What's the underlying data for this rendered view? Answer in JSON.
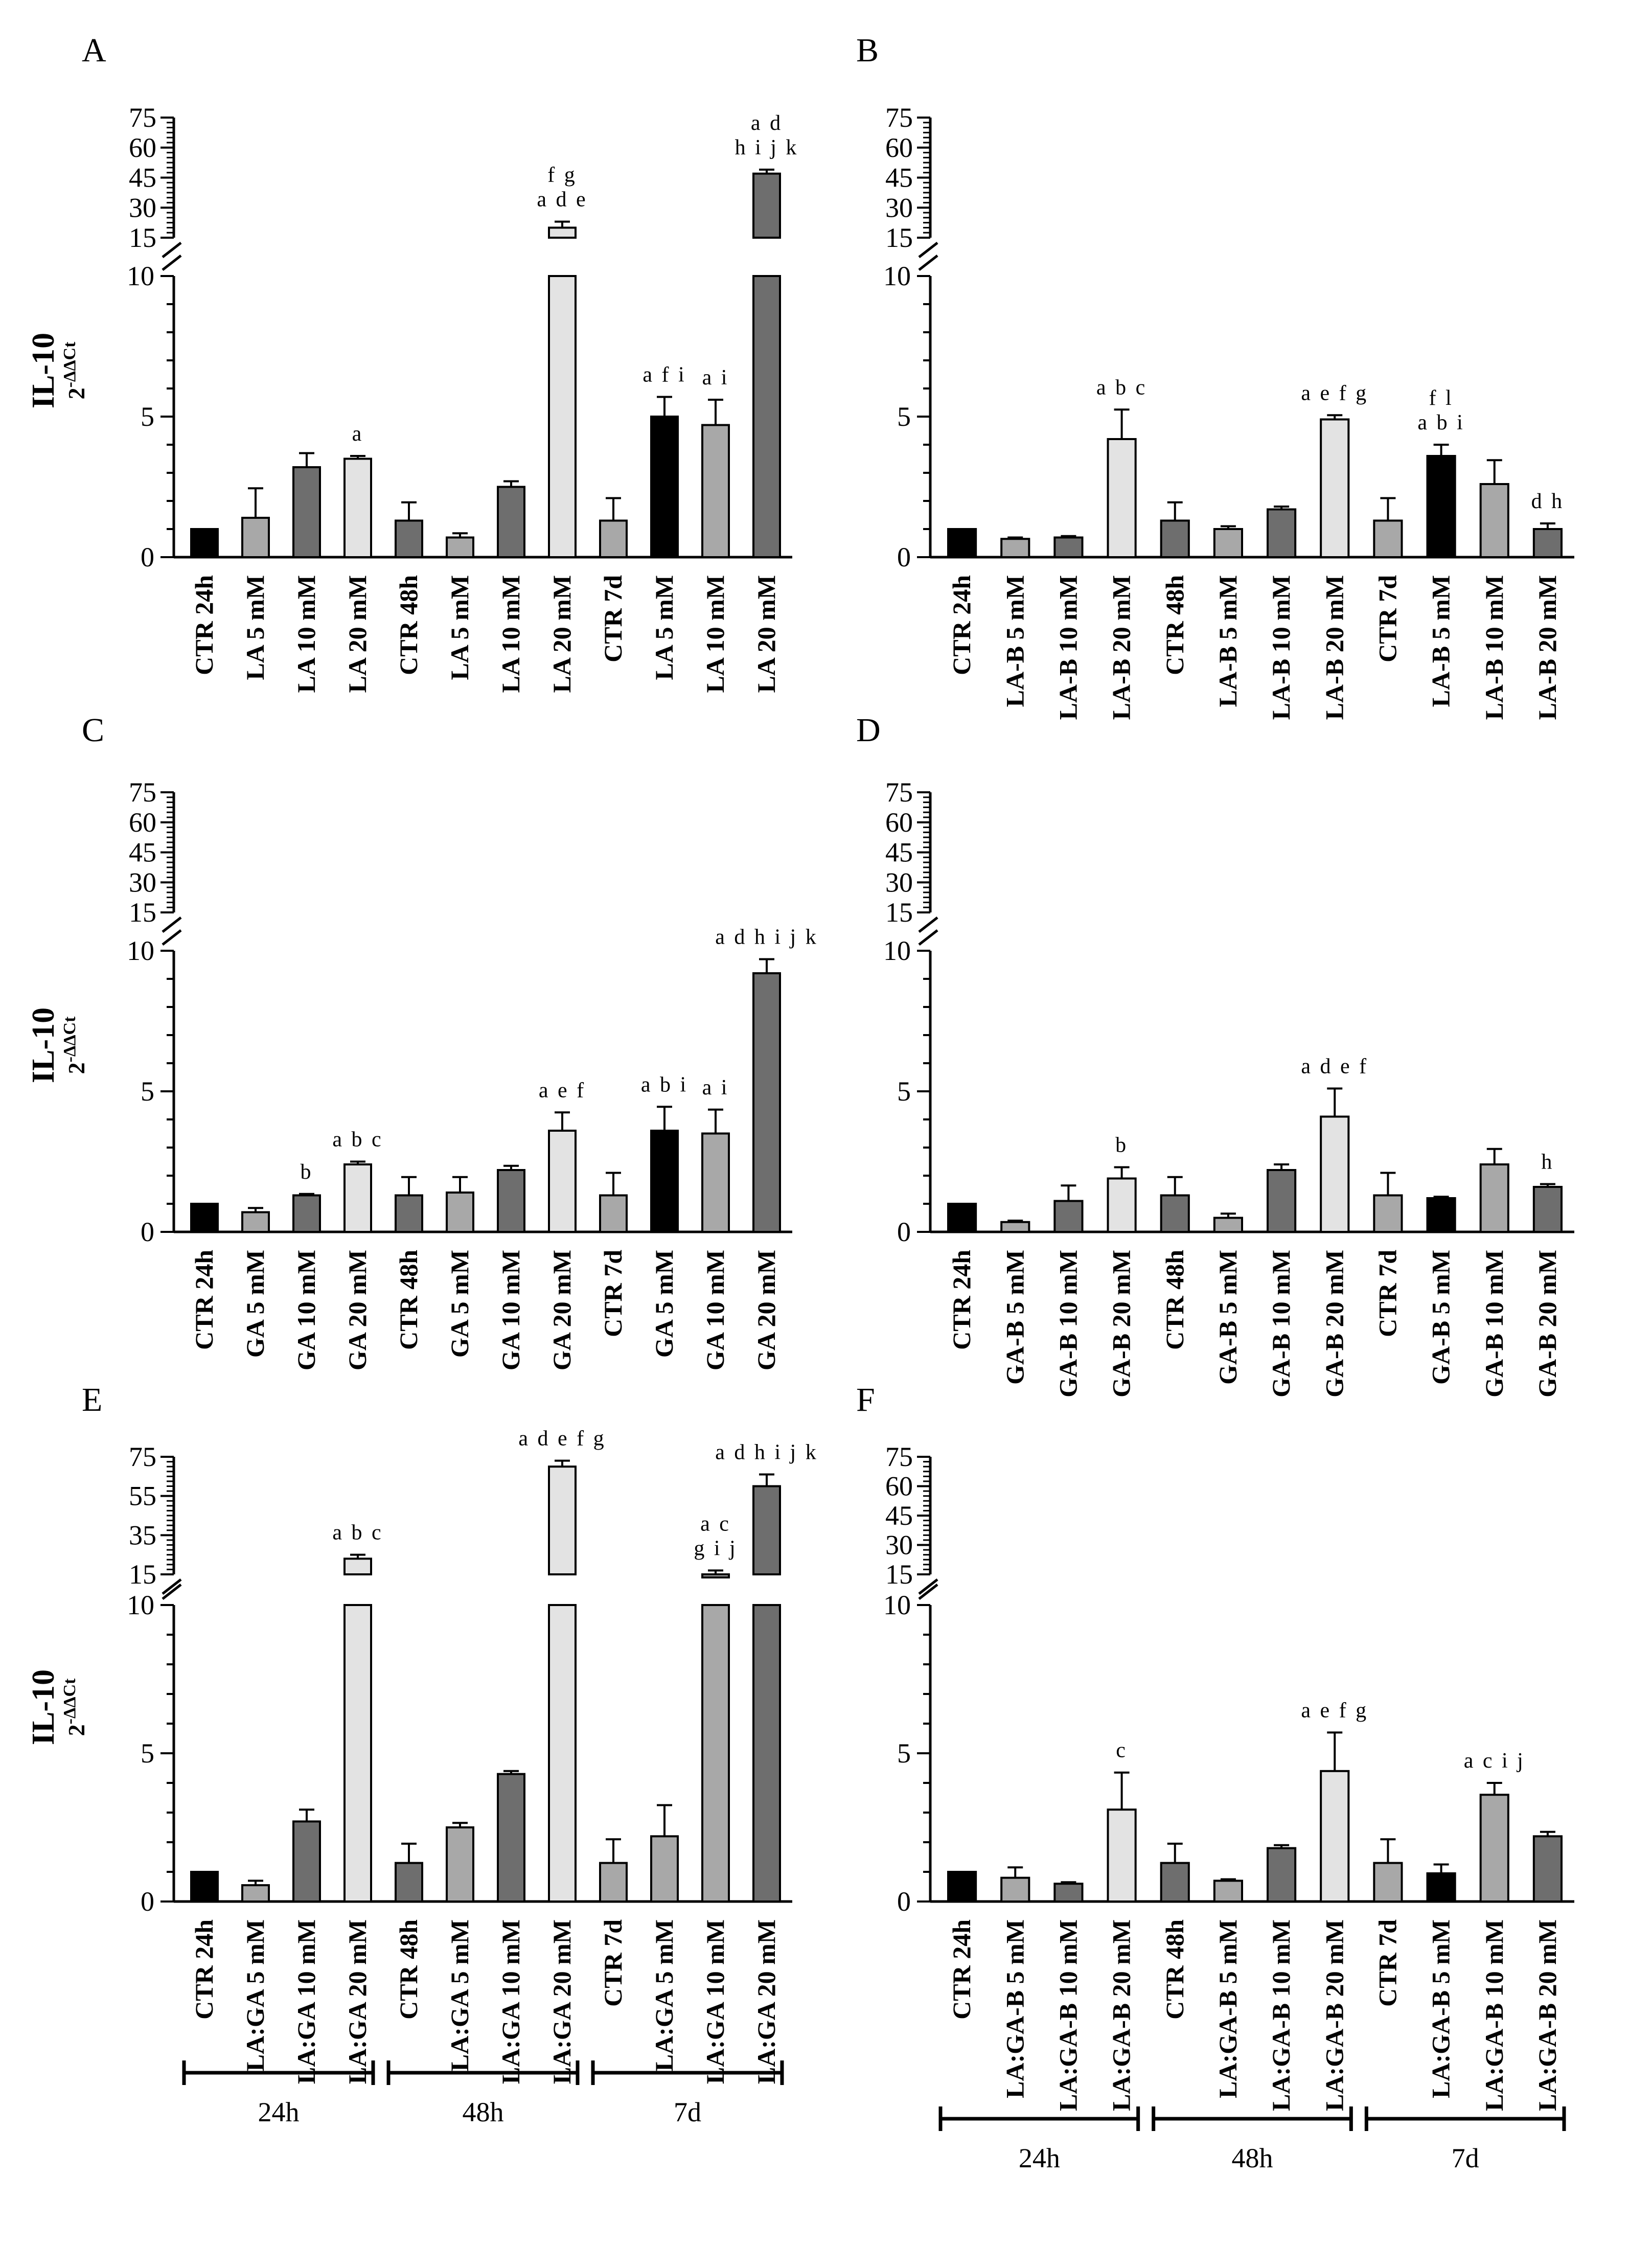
{
  "figure": {
    "y_label_main": "IL-10",
    "y_label_base": "2",
    "y_label_sup": "-ΔΔCt"
  },
  "chart_data": [
    {
      "type": "bar",
      "panel": "A",
      "categories": [
        "CTR 24h",
        "LA 5 mM",
        "LA 10 mM",
        "LA 20 mM",
        "CTR 48h",
        "LA 5 mM",
        "LA 10 mM",
        "LA 20 mM",
        "CTR 7d",
        "LA 5 mM",
        "LA 10 mM",
        "LA 20 mM"
      ],
      "values": [
        1.0,
        1.4,
        3.2,
        3.5,
        1.3,
        0.7,
        2.5,
        20,
        1.3,
        5.0,
        4.7,
        47
      ],
      "errors": [
        0,
        1.05,
        0.5,
        0.1,
        0.65,
        0.15,
        0.2,
        3,
        0.8,
        0.7,
        0.9,
        2
      ],
      "bar_colors": [
        "#000000",
        "#a8a8a8",
        "#6e6e6e",
        "#e3e3e3",
        "#6e6e6e",
        "#a8a8a8",
        "#6e6e6e",
        "#e3e3e3",
        "#a8a8a8",
        "#000000",
        "#a8a8a8",
        "#6e6e6e"
      ],
      "significance": [
        [],
        [],
        [],
        [
          "a"
        ],
        [],
        [],
        [],
        [
          "f g",
          "a d e"
        ],
        [],
        [
          "a f i"
        ],
        [
          "a i"
        ],
        [
          "a d",
          "h i j k"
        ]
      ],
      "y_label": "IL-10 2-ΔΔCt",
      "ylim_lower": [
        0,
        10
      ],
      "ylim_upper": [
        15,
        75
      ],
      "yticks_lower": [
        "0",
        "5",
        "10"
      ],
      "yticks_upper": [
        "15",
        "30",
        "45",
        "60",
        "75"
      ]
    },
    {
      "type": "bar",
      "panel": "B",
      "categories": [
        "CTR 24h",
        "LA-B 5 mM",
        "LA-B 10 mM",
        "LA-B 20 mM",
        "CTR 48h",
        "LA-B 5 mM",
        "LA-B 10 mM",
        "LA-B 20 mM",
        "CTR 7d",
        "LA-B 5 mM",
        "LA-B 10 mM",
        "LA-B 20 mM"
      ],
      "values": [
        1.0,
        0.65,
        0.7,
        4.2,
        1.3,
        1.0,
        1.7,
        4.9,
        1.3,
        3.6,
        2.6,
        1.0
      ],
      "errors": [
        0,
        0.05,
        0.05,
        1.05,
        0.65,
        0.1,
        0.1,
        0.15,
        0.8,
        0.4,
        0.85,
        0.2
      ],
      "bar_colors": [
        "#000000",
        "#a8a8a8",
        "#6e6e6e",
        "#e3e3e3",
        "#6e6e6e",
        "#a8a8a8",
        "#6e6e6e",
        "#e3e3e3",
        "#a8a8a8",
        "#000000",
        "#a8a8a8",
        "#6e6e6e"
      ],
      "significance": [
        [],
        [],
        [],
        [
          "a b c"
        ],
        [],
        [],
        [],
        [
          "a e f g"
        ],
        [],
        [
          "f l",
          "a b i"
        ],
        [],
        [
          "d h"
        ]
      ],
      "y_label": "",
      "ylim_lower": [
        0,
        10
      ],
      "ylim_upper": [
        15,
        75
      ],
      "yticks_lower": [
        "0",
        "5",
        "10"
      ],
      "yticks_upper": [
        "15",
        "30",
        "45",
        "60",
        "75"
      ]
    },
    {
      "type": "bar",
      "panel": "C",
      "categories": [
        "CTR 24h",
        "GA 5 mM",
        "GA 10 mM",
        "GA 20 mM",
        "CTR 48h",
        "GA 5 mM",
        "GA 10 mM",
        "GA 20 mM",
        "CTR 7d",
        "GA 5 mM",
        "GA 10 mM",
        "GA 20 mM"
      ],
      "values": [
        1.0,
        0.7,
        1.3,
        2.4,
        1.3,
        1.4,
        2.2,
        3.6,
        1.3,
        3.6,
        3.5,
        9.2
      ],
      "errors": [
        0,
        0.15,
        0.05,
        0.1,
        0.65,
        0.55,
        0.15,
        0.65,
        0.8,
        0.85,
        0.85,
        0.5
      ],
      "bar_colors": [
        "#000000",
        "#a8a8a8",
        "#6e6e6e",
        "#e3e3e3",
        "#6e6e6e",
        "#a8a8a8",
        "#6e6e6e",
        "#e3e3e3",
        "#a8a8a8",
        "#000000",
        "#a8a8a8",
        "#6e6e6e"
      ],
      "significance": [
        [],
        [],
        [
          "b"
        ],
        [
          "a b c"
        ],
        [],
        [],
        [],
        [
          "a e f"
        ],
        [],
        [
          "a b i"
        ],
        [
          "a i"
        ],
        [
          "a d h i j k"
        ]
      ],
      "y_label": "IL-10 2-ΔΔCt",
      "ylim_lower": [
        0,
        10
      ],
      "ylim_upper": [
        15,
        75
      ],
      "yticks_lower": [
        "0",
        "5",
        "10"
      ],
      "yticks_upper": [
        "15",
        "30",
        "45",
        "60",
        "75"
      ]
    },
    {
      "type": "bar",
      "panel": "D",
      "categories": [
        "CTR 24h",
        "GA-B 5 mM",
        "GA-B 10 mM",
        "GA-B 20 mM",
        "CTR 48h",
        "GA-B 5 mM",
        "GA-B 10 mM",
        "GA-B 20 mM",
        "CTR 7d",
        "GA-B 5 mM",
        "GA-B 10 mM",
        "GA-B 20 mM"
      ],
      "values": [
        1.0,
        0.35,
        1.1,
        1.9,
        1.3,
        0.5,
        2.2,
        4.1,
        1.3,
        1.2,
        2.4,
        1.6
      ],
      "errors": [
        0,
        0.05,
        0.55,
        0.4,
        0.65,
        0.15,
        0.2,
        1.0,
        0.8,
        0.05,
        0.55,
        0.1
      ],
      "bar_colors": [
        "#000000",
        "#a8a8a8",
        "#6e6e6e",
        "#e3e3e3",
        "#6e6e6e",
        "#a8a8a8",
        "#6e6e6e",
        "#e3e3e3",
        "#a8a8a8",
        "#000000",
        "#a8a8a8",
        "#6e6e6e"
      ],
      "significance": [
        [],
        [],
        [],
        [
          "b"
        ],
        [],
        [],
        [],
        [
          "a d e f"
        ],
        [],
        [],
        [],
        [
          "h"
        ]
      ],
      "y_label": "",
      "ylim_lower": [
        0,
        10
      ],
      "ylim_upper": [
        15,
        75
      ],
      "yticks_lower": [
        "0",
        "5",
        "10"
      ],
      "yticks_upper": [
        "15",
        "30",
        "45",
        "60",
        "75"
      ]
    },
    {
      "type": "bar",
      "panel": "E",
      "categories": [
        "CTR 24h",
        "LA:GA 5 mM",
        "LA:GA 10 mM",
        "LA:GA 20 mM",
        "CTR 48h",
        "LA:GA 5 mM",
        "LA:GA 10 mM",
        "LA:GA 20 mM",
        "CTR 7d",
        "LA:GA 5 mM",
        "LA:GA 10 mM",
        "LA:GA 20 mM"
      ],
      "values": [
        1.0,
        0.55,
        2.7,
        23,
        1.3,
        2.5,
        4.3,
        70,
        1.3,
        2.2,
        15,
        60
      ],
      "errors": [
        0,
        0.15,
        0.4,
        2,
        0.65,
        0.15,
        0.1,
        3,
        0.8,
        1.05,
        2,
        6
      ],
      "bar_colors": [
        "#000000",
        "#a8a8a8",
        "#6e6e6e",
        "#e3e3e3",
        "#6e6e6e",
        "#a8a8a8",
        "#6e6e6e",
        "#e3e3e3",
        "#a8a8a8",
        "#a8a8a8",
        "#a8a8a8",
        "#6e6e6e"
      ],
      "significance": [
        [],
        [],
        [],
        [
          "a b c"
        ],
        [],
        [],
        [],
        [
          "a d e f g"
        ],
        [],
        [],
        [
          "a c",
          "g i j"
        ],
        [
          "a d h i j k"
        ]
      ],
      "y_label": "IL-10 2-ΔΔCt",
      "ylim_lower": [
        0,
        10
      ],
      "ylim_upper": [
        15,
        75
      ],
      "yticks_lower": [
        "0",
        "5",
        "10"
      ],
      "yticks_upper": [
        "15",
        "35",
        "55",
        "75"
      ],
      "groups": [
        "24h",
        "48h",
        "7d"
      ]
    },
    {
      "type": "bar",
      "panel": "F",
      "categories": [
        "CTR 24h",
        "LA:GA-B 5 mM",
        "LA:GA-B 10 mM",
        "LA:GA-B 20 mM",
        "CTR 48h",
        "LA:GA-B 5 mM",
        "LA:GA-B 10 mM",
        "LA:GA-B 20 mM",
        "CTR 7d",
        "LA:GA-B 5 mM",
        "LA:GA-B 10 mM",
        "LA:GA-B 20 mM"
      ],
      "values": [
        1.0,
        0.8,
        0.6,
        3.1,
        1.3,
        0.7,
        1.8,
        4.4,
        1.3,
        0.95,
        3.6,
        2.2
      ],
      "errors": [
        0,
        0.35,
        0.05,
        1.25,
        0.65,
        0.05,
        0.1,
        1.3,
        0.8,
        0.3,
        0.4,
        0.15
      ],
      "bar_colors": [
        "#000000",
        "#a8a8a8",
        "#6e6e6e",
        "#e3e3e3",
        "#6e6e6e",
        "#a8a8a8",
        "#6e6e6e",
        "#e3e3e3",
        "#a8a8a8",
        "#000000",
        "#a8a8a8",
        "#6e6e6e"
      ],
      "significance": [
        [],
        [],
        [],
        [
          "c"
        ],
        [],
        [],
        [],
        [
          "a e f g"
        ],
        [],
        [],
        [
          "a c i j"
        ],
        []
      ],
      "y_label": "",
      "ylim_lower": [
        0,
        10
      ],
      "ylim_upper": [
        15,
        75
      ],
      "yticks_lower": [
        "0",
        "5",
        "10"
      ],
      "yticks_upper": [
        "15",
        "30",
        "45",
        "60",
        "75"
      ],
      "groups": [
        "24h",
        "48h",
        "7d"
      ]
    }
  ]
}
